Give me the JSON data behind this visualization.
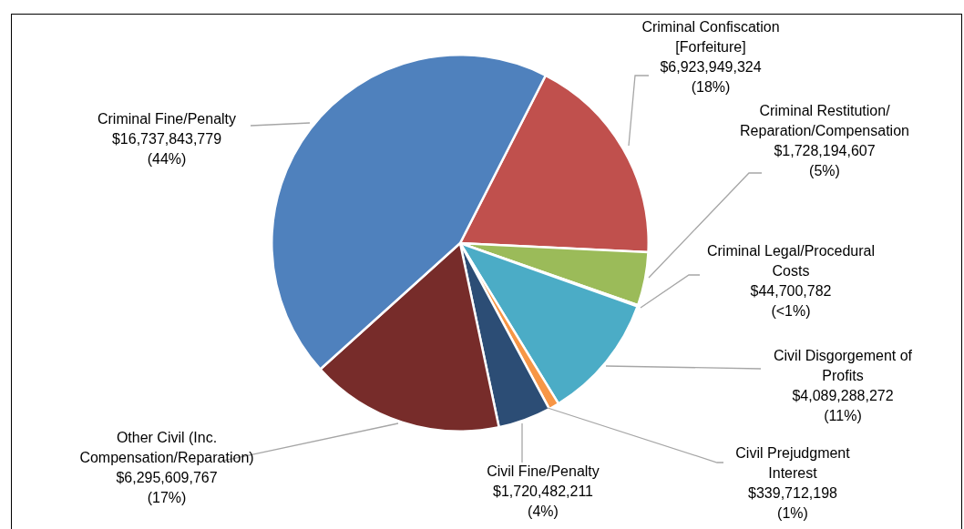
{
  "chart_data": {
    "type": "pie",
    "categories": [
      "Criminal Confiscation [Forfeiture]",
      "Criminal Restitution/Reparation/Compensation",
      "Criminal Legal/Procedural Costs",
      "Civil Disgorgement of Profits",
      "Civil Prejudgment Interest",
      "Civil Fine/Penalty",
      "Other Civil (Inc. Compensation/Reparation)",
      "Criminal Fine/Penalty"
    ],
    "values": [
      6923949324,
      1728194607,
      44700782,
      4089288272,
      339712198,
      1720482211,
      6295609767,
      16737843779
    ],
    "value_labels": [
      "$6,923,949,324 (18%)",
      "$1,728,194,607 (5%)",
      "$44,700,782 (<1%)",
      "$4,089,288,272 (11%)",
      "$339,712,198 (1%)",
      "$1,720,482,211 (4%)",
      "$6,295,609,767 (17%)",
      "$16,737,843,779 (44%)"
    ],
    "colors": [
      "#c0504d",
      "#9bbb59",
      "#8064a2",
      "#4bacc6",
      "#f79646",
      "#2c4d75",
      "#772c2a",
      "#4f81bd"
    ],
    "legend": false
  }
}
